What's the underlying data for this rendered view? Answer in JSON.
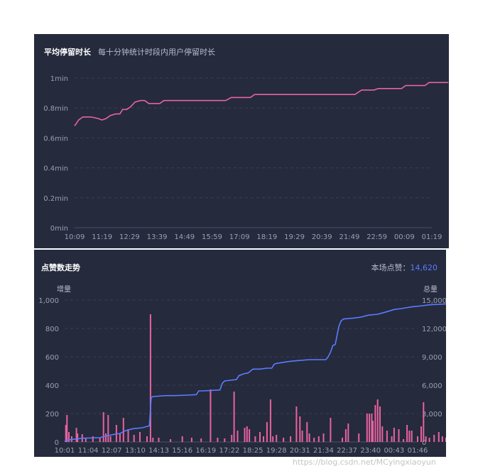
{
  "chart_data": [
    {
      "type": "line",
      "title": "平均停留时长",
      "subtitle": "每十分钟统计时段内用户停留时长",
      "x_ticks": [
        "10:09",
        "11:19",
        "12:29",
        "13:39",
        "14:49",
        "15:59",
        "17:09",
        "18:19",
        "19:29",
        "20:39",
        "21:49",
        "22:59",
        "00:09",
        "01:19"
      ],
      "y_ticks": [
        "0min",
        "0.2min",
        "0.4min",
        "0.6min",
        "0.8min",
        "1min"
      ],
      "ylim": [
        0,
        1
      ],
      "grid": true,
      "series": [
        {
          "color": "#e8639e",
          "points": [
            [
              0,
              0.68
            ],
            [
              0.15,
              0.72
            ],
            [
              0.3,
              0.74
            ],
            [
              0.6,
              0.74
            ],
            [
              0.85,
              0.73
            ],
            [
              1.0,
              0.72
            ],
            [
              1.15,
              0.73
            ],
            [
              1.3,
              0.75
            ],
            [
              1.5,
              0.76
            ],
            [
              1.65,
              0.76
            ],
            [
              1.75,
              0.79
            ],
            [
              1.9,
              0.79
            ],
            [
              2.05,
              0.81
            ],
            [
              2.2,
              0.84
            ],
            [
              2.4,
              0.85
            ],
            [
              2.55,
              0.85
            ],
            [
              2.7,
              0.83
            ],
            [
              2.85,
              0.83
            ],
            [
              3.1,
              0.83
            ],
            [
              3.25,
              0.85
            ],
            [
              4.0,
              0.85
            ],
            [
              5.5,
              0.85
            ],
            [
              5.7,
              0.87
            ],
            [
              6.4,
              0.87
            ],
            [
              6.55,
              0.89
            ],
            [
              10.2,
              0.89
            ],
            [
              10.45,
              0.92
            ],
            [
              10.9,
              0.92
            ],
            [
              11.05,
              0.93
            ],
            [
              11.9,
              0.93
            ],
            [
              12.05,
              0.95
            ],
            [
              12.75,
              0.95
            ],
            [
              12.9,
              0.97
            ],
            [
              13.6,
              0.97
            ]
          ]
        }
      ]
    },
    {
      "type": "bar+line",
      "title": "点赞数走势",
      "total_label": "本场点赞：",
      "total_value": "14,620",
      "y_left_name": "增量",
      "y_right_name": "总量",
      "x_ticks": [
        "10:01",
        "11:04",
        "12:07",
        "13:10",
        "14:13",
        "15:16",
        "16:19",
        "17:22",
        "18:25",
        "19:28",
        "20:31",
        "21:34",
        "22:37",
        "23:40",
        "00:43",
        "01:46"
      ],
      "y_left_ticks": [
        "0",
        "200",
        "400",
        "600",
        "800",
        "1,000"
      ],
      "y_right_ticks": [
        "0",
        "3,000",
        "6,000",
        "9,000",
        "12,000",
        "15,000"
      ],
      "ylim_left": [
        0,
        1000
      ],
      "ylim_right": [
        0,
        15000
      ],
      "grid": true,
      "series": [
        {
          "name": "增量",
          "color": "#e8639e",
          "values": [
            [
              0.05,
              120
            ],
            [
              0.1,
              190
            ],
            [
              0.18,
              70
            ],
            [
              0.3,
              40
            ],
            [
              0.5,
              100
            ],
            [
              0.55,
              60
            ],
            [
              0.75,
              55
            ],
            [
              0.9,
              30
            ],
            [
              1.2,
              40
            ],
            [
              1.5,
              30
            ],
            [
              1.65,
              210
            ],
            [
              1.75,
              60
            ],
            [
              1.85,
              190
            ],
            [
              1.95,
              40
            ],
            [
              2.2,
              120
            ],
            [
              2.35,
              60
            ],
            [
              2.5,
              170
            ],
            [
              2.7,
              90
            ],
            [
              2.95,
              50
            ],
            [
              3.2,
              70
            ],
            [
              3.5,
              40
            ],
            [
              3.65,
              900
            ],
            [
              3.75,
              30
            ],
            [
              4.0,
              30
            ],
            [
              4.5,
              20
            ],
            [
              5.0,
              40
            ],
            [
              5.4,
              30
            ],
            [
              5.8,
              25
            ],
            [
              6.2,
              370
            ],
            [
              6.5,
              30
            ],
            [
              6.8,
              25
            ],
            [
              7.1,
              50
            ],
            [
              7.2,
              355
            ],
            [
              7.35,
              80
            ],
            [
              7.65,
              100
            ],
            [
              7.75,
              110
            ],
            [
              7.85,
              90
            ],
            [
              8.1,
              40
            ],
            [
              8.3,
              70
            ],
            [
              8.45,
              40
            ],
            [
              8.6,
              140
            ],
            [
              8.75,
              300
            ],
            [
              8.85,
              40
            ],
            [
              9.0,
              50
            ],
            [
              9.3,
              30
            ],
            [
              9.6,
              40
            ],
            [
              9.85,
              250
            ],
            [
              10.0,
              180
            ],
            [
              10.1,
              80
            ],
            [
              10.3,
              140
            ],
            [
              10.4,
              60
            ],
            [
              10.6,
              30
            ],
            [
              10.8,
              40
            ],
            [
              11.0,
              60
            ],
            [
              11.3,
              170
            ],
            [
              11.8,
              30
            ],
            [
              11.95,
              90
            ],
            [
              12.05,
              130
            ],
            [
              12.5,
              60
            ],
            [
              12.85,
              200
            ],
            [
              12.95,
              200
            ],
            [
              13.05,
              200
            ],
            [
              13.1,
              150
            ],
            [
              13.2,
              260
            ],
            [
              13.3,
              300
            ],
            [
              13.4,
              250
            ],
            [
              13.5,
              110
            ],
            [
              13.7,
              80
            ],
            [
              13.9,
              40
            ],
            [
              14.0,
              100
            ],
            [
              14.2,
              90
            ],
            [
              14.4,
              20
            ],
            [
              14.55,
              120
            ],
            [
              14.65,
              80
            ],
            [
              14.75,
              80
            ],
            [
              15.0,
              40
            ],
            [
              15.15,
              110
            ],
            [
              15.25,
              280
            ],
            [
              15.35,
              40
            ],
            [
              15.5,
              30
            ],
            [
              15.7,
              50
            ],
            [
              15.9,
              70
            ],
            [
              16.05,
              40
            ],
            [
              16.2,
              30
            ],
            [
              16.35,
              20
            ]
          ]
        },
        {
          "name": "总量",
          "color": "#5b7cff",
          "points": [
            [
              0,
              50
            ],
            [
              0.1,
              200
            ],
            [
              0.8,
              400
            ],
            [
              1.5,
              450
            ],
            [
              1.7,
              600
            ],
            [
              2.1,
              800
            ],
            [
              2.35,
              900
            ],
            [
              2.6,
              1200
            ],
            [
              2.9,
              1400
            ],
            [
              3.3,
              1500
            ],
            [
              3.6,
              1700
            ],
            [
              3.68,
              4700
            ],
            [
              3.75,
              4800
            ],
            [
              4.3,
              4900
            ],
            [
              4.7,
              4900
            ],
            [
              5.2,
              4950
            ],
            [
              5.6,
              5000
            ],
            [
              5.7,
              5400
            ],
            [
              5.9,
              5400
            ],
            [
              6.6,
              5500
            ],
            [
              6.7,
              6200
            ],
            [
              6.8,
              6450
            ],
            [
              7.3,
              6600
            ],
            [
              7.4,
              7000
            ],
            [
              7.6,
              7200
            ],
            [
              7.8,
              7300
            ],
            [
              8.0,
              7700
            ],
            [
              8.15,
              7700
            ],
            [
              8.3,
              7700
            ],
            [
              8.6,
              7800
            ],
            [
              8.8,
              7800
            ],
            [
              8.9,
              8200
            ],
            [
              9.0,
              8300
            ],
            [
              9.5,
              8500
            ],
            [
              9.9,
              8600
            ],
            [
              10.4,
              8700
            ],
            [
              11.1,
              8700
            ],
            [
              11.2,
              9000
            ],
            [
              11.3,
              9500
            ],
            [
              11.4,
              10200
            ],
            [
              11.5,
              10300
            ],
            [
              11.65,
              12200
            ],
            [
              11.75,
              12800
            ],
            [
              11.85,
              13000
            ],
            [
              12.3,
              13100
            ],
            [
              12.6,
              13200
            ],
            [
              12.9,
              13400
            ],
            [
              13.3,
              13500
            ],
            [
              13.6,
              13700
            ],
            [
              14.0,
              14000
            ],
            [
              14.3,
              14100
            ],
            [
              14.8,
              14300
            ],
            [
              15.2,
              14400
            ],
            [
              15.5,
              14500
            ],
            [
              16.4,
              14620
            ]
          ]
        }
      ]
    }
  ],
  "watermark": "https://blog.csdn.net/MCyingxiaoyun"
}
